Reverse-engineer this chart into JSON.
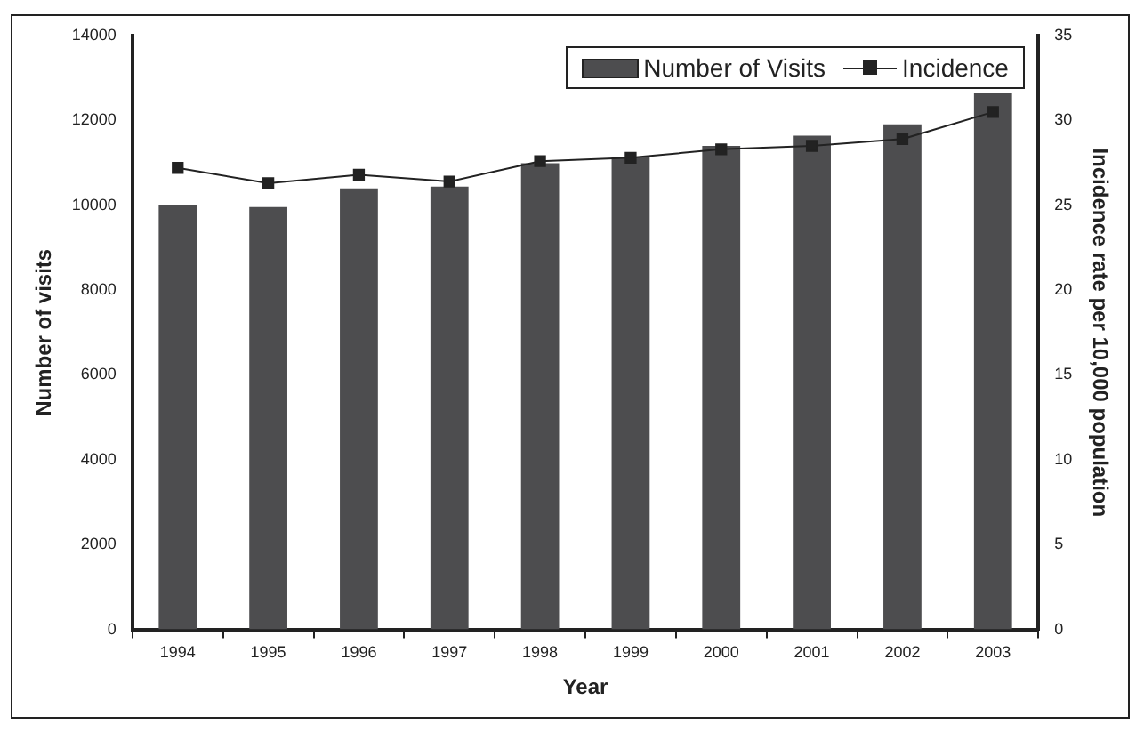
{
  "chart_data": {
    "type": "bar",
    "xlabel": "Year",
    "ylabel": "Number of visits",
    "y2label": "Incidence rate per 10,000 population",
    "categories": [
      "1994",
      "1995",
      "1996",
      "1997",
      "1998",
      "1999",
      "2000",
      "2001",
      "2002",
      "2003"
    ],
    "series": [
      {
        "name": "Number of Visits",
        "color": "#4d4d4f",
        "values": [
          10000,
          9960,
          10400,
          10440,
          10990,
          11130,
          11400,
          11640,
          11910,
          12640
        ]
      },
      {
        "name": "Incidence",
        "type": "line",
        "axis": "y2",
        "color": "#222222",
        "values": [
          27.2,
          26.3,
          26.8,
          26.4,
          27.6,
          27.8,
          28.3,
          28.5,
          28.9,
          30.5
        ]
      }
    ],
    "ylim": [
      0,
      14000
    ],
    "yticks": [
      0,
      2000,
      4000,
      6000,
      8000,
      10000,
      12000,
      14000
    ],
    "y2lim": [
      0,
      35
    ],
    "y2ticks": [
      0,
      5,
      10,
      15,
      20,
      25,
      30,
      35
    ],
    "legend": "top right",
    "grid": false,
    "marker": "square"
  }
}
